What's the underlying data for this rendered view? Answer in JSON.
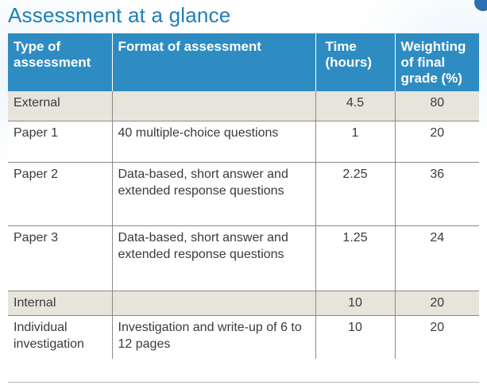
{
  "title": "Assessment at a glance",
  "columns": [
    "Type of assessment",
    "Format of assessment",
    "Time (hours)",
    "Weighting of final grade (%)"
  ],
  "rows": [
    {
      "type": "External",
      "format": "",
      "time": "4.5",
      "weighting": "80",
      "section": true
    },
    {
      "type": "Paper 1",
      "format": "40 multiple-choice questions",
      "time": "1",
      "weighting": "20",
      "section": false
    },
    {
      "type": "Paper 2",
      "format": "Data-based, short answer and extended response questions",
      "time": "2.25",
      "weighting": "36",
      "section": false
    },
    {
      "type": "Paper 3",
      "format": "Data-based, short answer and extended response questions",
      "time": "1.25",
      "weighting": "24",
      "section": false
    },
    {
      "type": "Internal",
      "format": "",
      "time": "10",
      "weighting": "20",
      "section": true
    },
    {
      "type": "Individual investigation",
      "format": "Investigation and write-up of 6 to 12 pages",
      "time": "10",
      "weighting": "20",
      "section": false
    }
  ],
  "colors": {
    "title": "#1f7fb6",
    "header_bg": "#2f8cc2",
    "section_bg": "#e7e4dc"
  }
}
